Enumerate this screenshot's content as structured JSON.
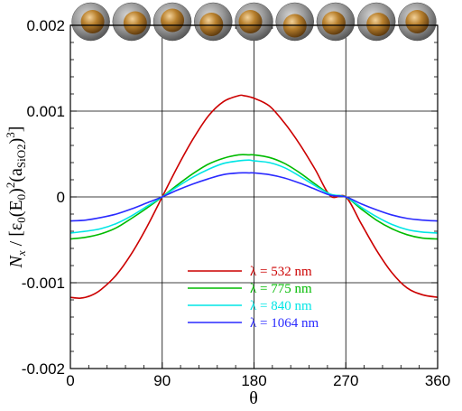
{
  "chart_data": {
    "type": "line",
    "xlabel": "θ",
    "ylabel": "N_x / [ε_0 (E_0)^2 (a_SiO2)^3]",
    "ylabel_parts": {
      "N": "N",
      "x": "x",
      "sep": " / [",
      "eps": "ε",
      "zero1": "0",
      "E": "(E",
      "zero2": "0",
      "sq": ")",
      "two": "2",
      "a": "(a",
      "sio2": "SiO2",
      "close": ")",
      "three": "3",
      "end": "]"
    },
    "xlim": [
      0,
      360
    ],
    "ylim": [
      -0.002,
      0.002
    ],
    "xticks": [
      0,
      90,
      180,
      270,
      360
    ],
    "xtick_labels": [
      "0",
      "90",
      "180",
      "270",
      "360"
    ],
    "yticks": [
      -0.002,
      -0.001,
      0,
      0.001,
      0.002
    ],
    "ytick_labels": [
      "-0.002",
      "-0.001",
      "0",
      "0.001",
      "0.002"
    ],
    "grid": true,
    "legend_position": "lower-center",
    "series": [
      {
        "name": "λ =  532 nm",
        "color": "#cc0000",
        "x": [
          0,
          10,
          20,
          30,
          45,
          60,
          75,
          90,
          105,
          120,
          135,
          150,
          165,
          170,
          180,
          195,
          210,
          225,
          240,
          255,
          270,
          285,
          300,
          315,
          330,
          345,
          360
        ],
        "y": [
          -0.00117,
          -0.00118,
          -0.00115,
          -0.00108,
          -0.00091,
          -0.00066,
          -0.00035,
          0.0,
          0.00035,
          0.00067,
          0.00094,
          0.00111,
          0.00118,
          0.00118,
          0.00115,
          0.00106,
          0.00086,
          0.00061,
          0.00032,
          1e-05,
          -0.0,
          -0.00031,
          -0.00062,
          -0.00088,
          -0.00106,
          -0.00114,
          -0.00117
        ]
      },
      {
        "name": "λ = 775 nm",
        "color": "#00bb00",
        "x": [
          0,
          15,
          30,
          45,
          60,
          75,
          90,
          105,
          120,
          135,
          150,
          165,
          175,
          180,
          195,
          210,
          225,
          240,
          255,
          270,
          285,
          300,
          315,
          330,
          345,
          360
        ],
        "y": [
          -0.00049,
          -0.00047,
          -0.00043,
          -0.00036,
          -0.00025,
          -0.00013,
          0.0,
          0.00014,
          0.00027,
          0.00038,
          0.00045,
          0.00049,
          0.00049,
          0.00049,
          0.00046,
          0.00039,
          0.00028,
          0.00015,
          3e-05,
          0.0,
          -0.00014,
          -0.00027,
          -0.00037,
          -0.00044,
          -0.00048,
          -0.00049
        ]
      },
      {
        "name": "λ = 840 nm",
        "color": "#00e5e5",
        "x": [
          0,
          15,
          30,
          45,
          60,
          75,
          90,
          105,
          120,
          135,
          150,
          165,
          175,
          180,
          195,
          210,
          225,
          240,
          255,
          270,
          285,
          300,
          315,
          330,
          345,
          360
        ],
        "y": [
          -0.00042,
          -0.0004,
          -0.00037,
          -0.00031,
          -0.00022,
          -0.00011,
          0.0,
          0.00012,
          0.00023,
          0.00032,
          0.00039,
          0.00042,
          0.00043,
          0.00042,
          0.0004,
          0.00034,
          0.00024,
          0.00013,
          3e-05,
          0.0,
          -0.00012,
          -0.00023,
          -0.00032,
          -0.00038,
          -0.00041,
          -0.00042
        ]
      },
      {
        "name": "λ = 1064 nm",
        "color": "#2a2aff",
        "x": [
          0,
          15,
          30,
          45,
          60,
          75,
          90,
          105,
          120,
          135,
          150,
          165,
          175,
          180,
          195,
          210,
          225,
          240,
          255,
          270,
          285,
          300,
          315,
          330,
          345,
          360
        ],
        "y": [
          -0.00028,
          -0.00027,
          -0.00024,
          -0.0002,
          -0.00014,
          -7e-05,
          0.0,
          8e-05,
          0.00015,
          0.00021,
          0.00026,
          0.00028,
          0.00028,
          0.00028,
          0.00026,
          0.00022,
          0.00016,
          9e-05,
          2e-05,
          0.0,
          -8e-05,
          -0.00015,
          -0.00021,
          -0.00025,
          -0.00027,
          -0.00028
        ]
      }
    ],
    "sphere_markers_count": 9,
    "sphere_colors": {
      "shell": "#8e8e8e",
      "core": "#a0702a"
    }
  }
}
